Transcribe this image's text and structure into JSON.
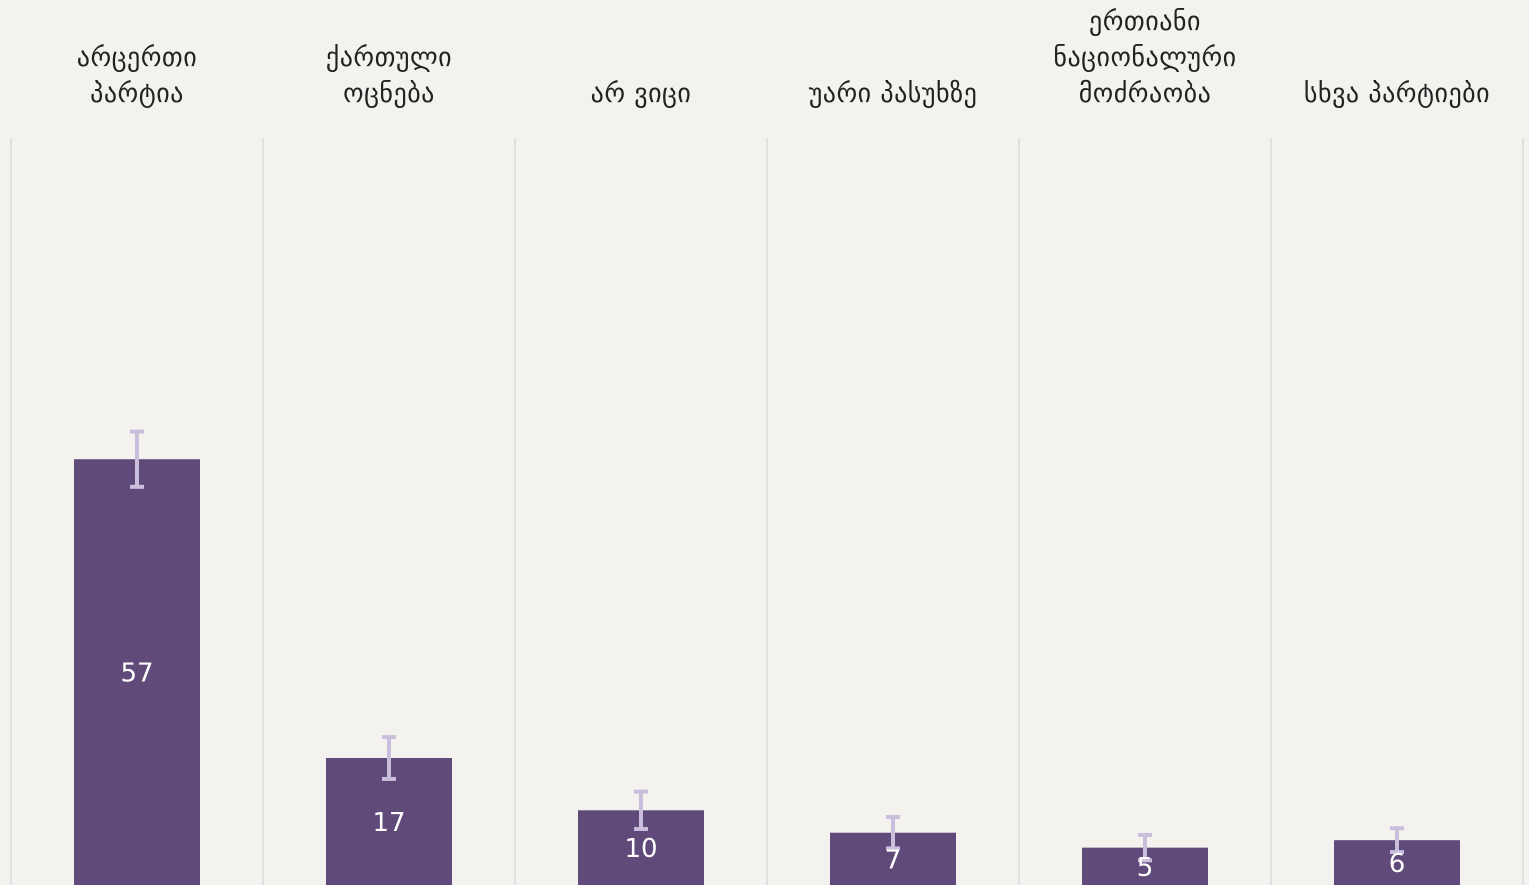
{
  "chart_data": {
    "type": "bar",
    "categories": [
      "არცერთი\nპარტია",
      "ქართული\nოცნება",
      "არ ვიცი",
      "უარი პასუხზე",
      "ერთიანი\nნაციონალური\nმოძრაობა",
      "სხვა პარტიები"
    ],
    "values": [
      57,
      17,
      10,
      7,
      5,
      6
    ],
    "errors": [
      3.7,
      2.8,
      2.5,
      2.1,
      1.7,
      1.6
    ],
    "color": "#5f4a7a",
    "error_color": "#c9bfdc",
    "ylim": [
      0,
      100
    ]
  }
}
